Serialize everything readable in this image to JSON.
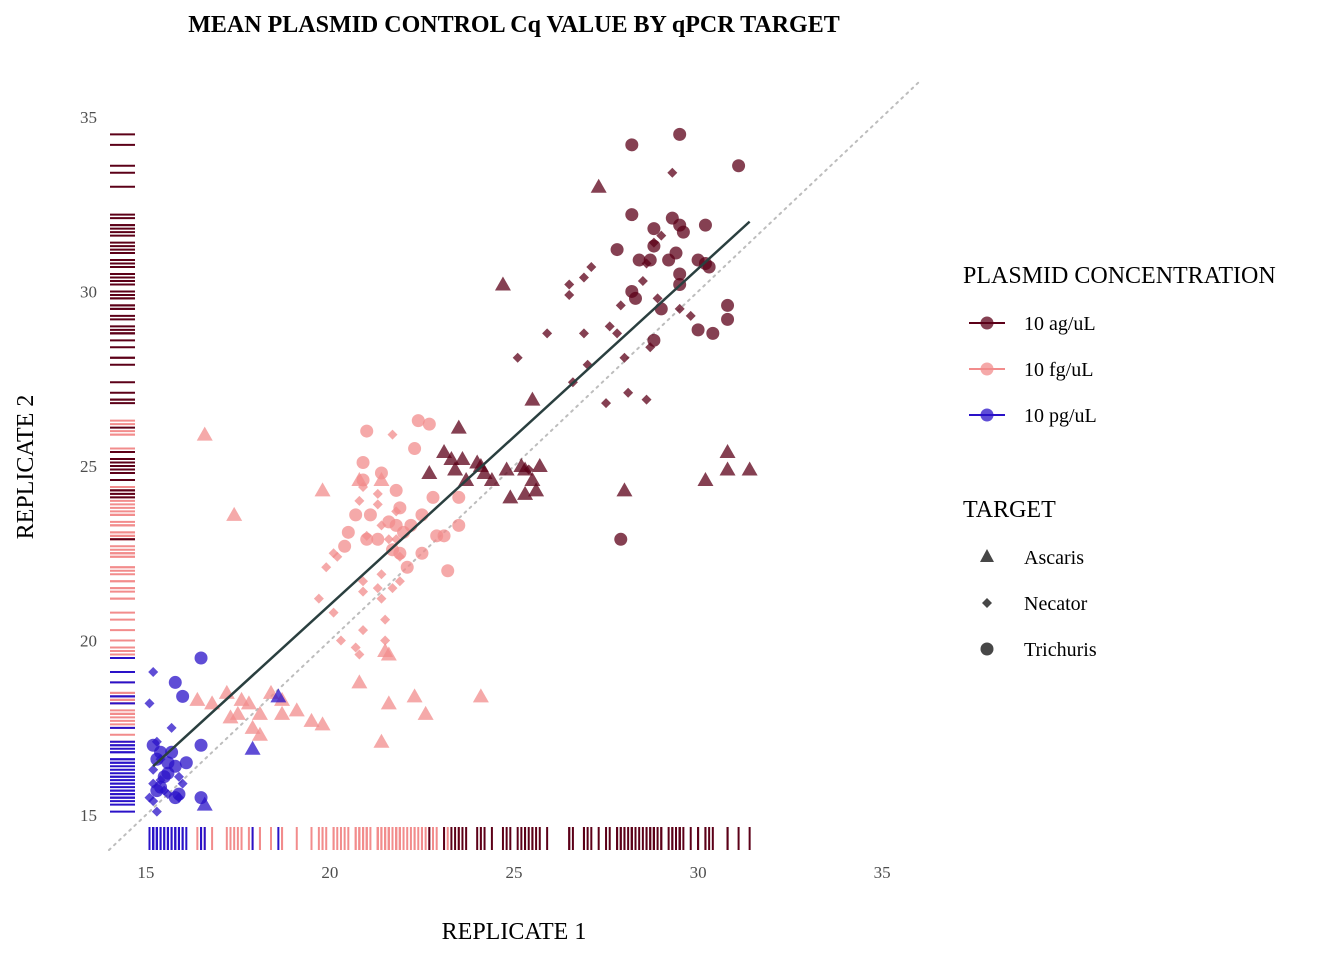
{
  "chart_data": {
    "type": "scatter",
    "title": "MEAN PLASMID CONTROL Cq VALUE BY qPCR TARGET",
    "xlabel": "REPLICATE 1",
    "ylabel": "REPLICATE 2",
    "xlim": [
      14,
      36
    ],
    "ylim": [
      14,
      36
    ],
    "x_ticks": [
      "15",
      "20",
      "25",
      "30",
      "35"
    ],
    "y_ticks": [
      "15",
      "20",
      "25",
      "30",
      "35"
    ],
    "grid": false,
    "reference_line": "y = x",
    "fit_line": {
      "x": [
        15.2,
        31.4
      ],
      "y": [
        16.4,
        32.0
      ],
      "color": "#2a3f3f"
    },
    "legend": {
      "placement": "right",
      "concentration_title": "PLASMID CONCENTRATION",
      "concentration_items": [
        {
          "label": "10 ag/uL",
          "color": "#5c0018"
        },
        {
          "label": "10 fg/uL",
          "color": "#f28c8c"
        },
        {
          "label": "10 pg/uL",
          "color": "#2a12c8"
        }
      ],
      "target_title": "TARGET",
      "target_items": [
        {
          "label": "Ascaris",
          "shape": "triangle"
        },
        {
          "label": "Necator",
          "shape": "diamond"
        },
        {
          "label": "Trichuris",
          "shape": "circle"
        }
      ]
    },
    "series": [
      {
        "concentration": "10 ag/uL",
        "target": "Trichuris",
        "points": [
          [
            28.2,
            34.2
          ],
          [
            29.5,
            34.5
          ],
          [
            31.1,
            33.6
          ],
          [
            28.2,
            32.2
          ],
          [
            29.3,
            32.1
          ],
          [
            28.8,
            31.8
          ],
          [
            30.2,
            31.9
          ],
          [
            29.5,
            31.9
          ],
          [
            27.8,
            31.2
          ],
          [
            28.8,
            31.3
          ],
          [
            29.6,
            31.7
          ],
          [
            29.4,
            31.1
          ],
          [
            28.4,
            30.9
          ],
          [
            28.7,
            30.9
          ],
          [
            29.2,
            30.9
          ],
          [
            30.0,
            30.9
          ],
          [
            30.3,
            30.7
          ],
          [
            29.5,
            30.5
          ],
          [
            30.2,
            30.8
          ],
          [
            29.5,
            30.2
          ],
          [
            28.2,
            30.0
          ],
          [
            28.3,
            29.8
          ],
          [
            29.0,
            29.5
          ],
          [
            30.8,
            29.6
          ],
          [
            30.8,
            29.2
          ],
          [
            30.0,
            28.9
          ],
          [
            30.4,
            28.8
          ],
          [
            28.8,
            28.6
          ],
          [
            27.9,
            22.9
          ]
        ]
      },
      {
        "concentration": "10 ag/uL",
        "target": "Necator",
        "points": [
          [
            29.3,
            33.4
          ],
          [
            29.0,
            31.6
          ],
          [
            28.8,
            31.4
          ],
          [
            28.6,
            30.8
          ],
          [
            27.1,
            30.7
          ],
          [
            26.9,
            30.4
          ],
          [
            28.5,
            30.3
          ],
          [
            26.5,
            30.2
          ],
          [
            26.5,
            29.9
          ],
          [
            28.9,
            29.8
          ],
          [
            27.9,
            29.6
          ],
          [
            29.5,
            29.5
          ],
          [
            27.6,
            29.0
          ],
          [
            27.8,
            28.8
          ],
          [
            26.9,
            28.8
          ],
          [
            28.0,
            28.1
          ],
          [
            29.8,
            29.3
          ],
          [
            28.7,
            28.4
          ],
          [
            25.9,
            28.8
          ],
          [
            25.1,
            28.1
          ],
          [
            27.0,
            27.9
          ],
          [
            26.6,
            27.4
          ],
          [
            28.1,
            27.1
          ],
          [
            27.5,
            26.8
          ],
          [
            28.6,
            26.9
          ],
          [
            25.4,
            24.9
          ]
        ]
      },
      {
        "concentration": "10 ag/uL",
        "target": "Ascaris",
        "points": [
          [
            27.3,
            33.0
          ],
          [
            24.7,
            30.2
          ],
          [
            25.5,
            26.9
          ],
          [
            23.5,
            26.1
          ],
          [
            23.1,
            25.4
          ],
          [
            24.1,
            25.0
          ],
          [
            23.3,
            25.2
          ],
          [
            23.6,
            25.2
          ],
          [
            22.7,
            24.8
          ],
          [
            23.4,
            24.9
          ],
          [
            24.0,
            25.1
          ],
          [
            24.2,
            24.8
          ],
          [
            24.4,
            24.6
          ],
          [
            24.8,
            24.9
          ],
          [
            25.2,
            25.0
          ],
          [
            24.9,
            24.1
          ],
          [
            25.3,
            24.2
          ],
          [
            25.6,
            24.3
          ],
          [
            25.5,
            24.6
          ],
          [
            25.3,
            24.9
          ],
          [
            25.7,
            25.0
          ],
          [
            23.7,
            24.6
          ],
          [
            28.0,
            24.3
          ],
          [
            30.8,
            25.4
          ],
          [
            30.2,
            24.6
          ],
          [
            30.8,
            24.9
          ],
          [
            31.4,
            24.9
          ]
        ]
      },
      {
        "concentration": "10 fg/uL",
        "target": "Trichuris",
        "points": [
          [
            22.4,
            26.3
          ],
          [
            21.0,
            26.0
          ],
          [
            22.7,
            26.2
          ],
          [
            22.3,
            25.5
          ],
          [
            20.9,
            25.1
          ],
          [
            21.4,
            24.8
          ],
          [
            20.9,
            24.6
          ],
          [
            21.8,
            24.3
          ],
          [
            22.8,
            24.1
          ],
          [
            23.5,
            24.1
          ],
          [
            20.7,
            23.6
          ],
          [
            21.1,
            23.6
          ],
          [
            21.9,
            23.8
          ],
          [
            22.2,
            23.3
          ],
          [
            22.5,
            23.6
          ],
          [
            21.6,
            23.4
          ],
          [
            21.8,
            23.3
          ],
          [
            23.5,
            23.3
          ],
          [
            20.5,
            23.1
          ],
          [
            21.0,
            22.9
          ],
          [
            21.3,
            22.9
          ],
          [
            22.0,
            23.1
          ],
          [
            22.9,
            23.0
          ],
          [
            23.1,
            23.0
          ],
          [
            20.4,
            22.7
          ],
          [
            21.7,
            22.6
          ],
          [
            21.9,
            22.5
          ],
          [
            22.5,
            22.5
          ],
          [
            22.1,
            22.1
          ],
          [
            23.2,
            22.0
          ]
        ]
      },
      {
        "concentration": "10 fg/uL",
        "target": "Necator",
        "points": [
          [
            21.7,
            25.9
          ],
          [
            20.9,
            24.4
          ],
          [
            21.3,
            24.2
          ],
          [
            20.8,
            24.0
          ],
          [
            21.3,
            23.9
          ],
          [
            21.8,
            23.7
          ],
          [
            21.4,
            23.3
          ],
          [
            21.0,
            23.0
          ],
          [
            21.8,
            22.9
          ],
          [
            21.6,
            22.9
          ],
          [
            20.1,
            22.5
          ],
          [
            20.2,
            22.4
          ],
          [
            19.9,
            22.1
          ],
          [
            21.9,
            22.4
          ],
          [
            21.4,
            21.9
          ],
          [
            20.9,
            21.7
          ],
          [
            21.3,
            21.5
          ],
          [
            21.4,
            21.2
          ],
          [
            21.9,
            21.7
          ],
          [
            21.7,
            21.5
          ],
          [
            20.9,
            21.4
          ],
          [
            19.7,
            21.2
          ],
          [
            20.1,
            20.8
          ],
          [
            20.9,
            20.3
          ],
          [
            21.5,
            20.6
          ],
          [
            20.7,
            19.8
          ],
          [
            21.5,
            20.0
          ],
          [
            20.8,
            19.6
          ],
          [
            20.3,
            20.0
          ]
        ]
      },
      {
        "concentration": "10 fg/uL",
        "target": "Ascaris",
        "points": [
          [
            16.6,
            25.9
          ],
          [
            19.8,
            24.3
          ],
          [
            20.8,
            24.6
          ],
          [
            21.4,
            24.6
          ],
          [
            17.4,
            23.6
          ],
          [
            21.5,
            19.7
          ],
          [
            21.6,
            19.6
          ],
          [
            20.8,
            18.8
          ],
          [
            16.8,
            18.2
          ],
          [
            17.2,
            18.5
          ],
          [
            18.4,
            18.5
          ],
          [
            16.4,
            18.3
          ],
          [
            17.6,
            18.3
          ],
          [
            17.8,
            18.2
          ],
          [
            18.7,
            18.3
          ],
          [
            18.1,
            17.9
          ],
          [
            19.1,
            18.0
          ],
          [
            17.3,
            17.8
          ],
          [
            17.5,
            17.9
          ],
          [
            18.7,
            17.9
          ],
          [
            17.9,
            17.5
          ],
          [
            19.8,
            17.6
          ],
          [
            19.5,
            17.7
          ],
          [
            21.6,
            18.2
          ],
          [
            22.3,
            18.4
          ],
          [
            22.6,
            17.9
          ],
          [
            24.1,
            18.4
          ],
          [
            21.4,
            17.1
          ],
          [
            18.1,
            17.3
          ]
        ]
      },
      {
        "concentration": "10 pg/uL",
        "target": "Trichuris",
        "points": [
          [
            16.5,
            19.5
          ],
          [
            15.8,
            18.8
          ],
          [
            16.0,
            18.4
          ],
          [
            16.5,
            17.0
          ],
          [
            15.2,
            17.0
          ],
          [
            15.4,
            16.8
          ],
          [
            15.3,
            16.6
          ],
          [
            15.7,
            16.8
          ],
          [
            15.6,
            16.5
          ],
          [
            15.6,
            16.2
          ],
          [
            15.8,
            16.4
          ],
          [
            16.1,
            16.5
          ],
          [
            15.5,
            16.1
          ],
          [
            15.4,
            15.8
          ],
          [
            15.3,
            15.7
          ],
          [
            15.9,
            15.6
          ],
          [
            15.8,
            15.5
          ],
          [
            16.5,
            15.5
          ]
        ]
      },
      {
        "concentration": "10 pg/uL",
        "target": "Necator",
        "points": [
          [
            15.2,
            19.1
          ],
          [
            15.1,
            18.2
          ],
          [
            15.7,
            17.5
          ],
          [
            15.3,
            17.1
          ],
          [
            15.4,
            16.6
          ],
          [
            15.2,
            16.3
          ],
          [
            15.4,
            16.0
          ],
          [
            15.9,
            16.1
          ],
          [
            15.2,
            15.9
          ],
          [
            15.5,
            15.7
          ],
          [
            15.6,
            15.6
          ],
          [
            15.1,
            15.5
          ],
          [
            15.2,
            15.4
          ],
          [
            15.9,
            15.5
          ],
          [
            15.3,
            15.1
          ],
          [
            16.0,
            15.9
          ]
        ]
      },
      {
        "concentration": "10 pg/uL",
        "target": "Ascaris",
        "points": [
          [
            18.6,
            18.4
          ],
          [
            17.9,
            16.9
          ],
          [
            16.6,
            15.3
          ]
        ]
      }
    ]
  }
}
